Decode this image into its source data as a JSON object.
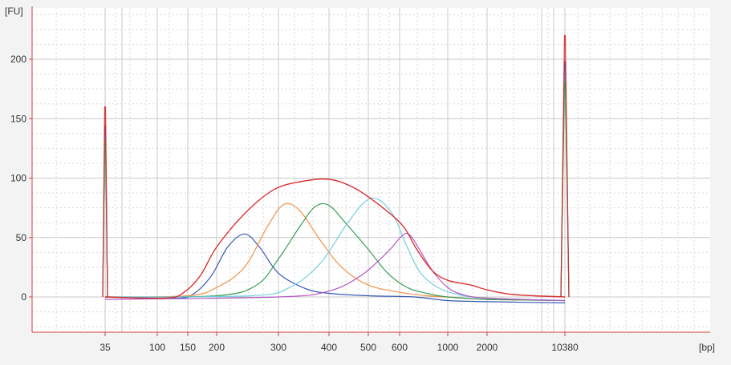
{
  "chart_data": {
    "type": "line",
    "title": "",
    "ylabel": "[FU]",
    "xlabel": "[bp]",
    "x_scale": "log",
    "ylim": [
      -30,
      240
    ],
    "y_ticks": [
      0,
      50,
      100,
      150,
      200
    ],
    "x_ticks": [
      35,
      100,
      150,
      200,
      300,
      400,
      500,
      600,
      1000,
      2000,
      10380
    ],
    "grid": true,
    "legend": "none",
    "colors": {
      "axis": "#d04040",
      "grid_major": "#c8c8c8",
      "grid_minor": "#d8d8d8",
      "background": "#ffffff"
    },
    "markers": [
      {
        "bp": 35,
        "height": 160
      },
      {
        "bp": 10380,
        "height": 220
      }
    ],
    "series": [
      {
        "color": "#2b4fb0",
        "values": [
          [
            35,
            0
          ],
          [
            130,
            -1
          ],
          [
            160,
            3
          ],
          [
            190,
            18
          ],
          [
            215,
            42
          ],
          [
            240,
            53
          ],
          [
            265,
            42
          ],
          [
            300,
            20
          ],
          [
            350,
            7
          ],
          [
            400,
            3
          ],
          [
            500,
            1
          ],
          [
            700,
            0
          ],
          [
            1000,
            -3
          ],
          [
            2000,
            -4
          ],
          [
            10380,
            -5
          ]
        ]
      },
      {
        "color": "#f08c40",
        "values": [
          [
            35,
            0
          ],
          [
            150,
            1
          ],
          [
            200,
            8
          ],
          [
            240,
            25
          ],
          [
            280,
            60
          ],
          [
            310,
            78
          ],
          [
            340,
            72
          ],
          [
            380,
            48
          ],
          [
            430,
            25
          ],
          [
            500,
            10
          ],
          [
            600,
            4
          ],
          [
            800,
            1
          ],
          [
            1000,
            0
          ],
          [
            2000,
            -2
          ],
          [
            10380,
            -3
          ]
        ]
      },
      {
        "color": "#2e9a50",
        "values": [
          [
            35,
            0
          ],
          [
            200,
            1
          ],
          [
            260,
            10
          ],
          [
            300,
            32
          ],
          [
            340,
            60
          ],
          [
            370,
            76
          ],
          [
            400,
            77
          ],
          [
            440,
            62
          ],
          [
            500,
            40
          ],
          [
            560,
            20
          ],
          [
            650,
            8
          ],
          [
            800,
            3
          ],
          [
            1000,
            0
          ],
          [
            2000,
            -2
          ],
          [
            10380,
            -3
          ]
        ]
      },
      {
        "color": "#6ccce0",
        "values": [
          [
            35,
            0
          ],
          [
            250,
            1
          ],
          [
            320,
            8
          ],
          [
            380,
            28
          ],
          [
            440,
            60
          ],
          [
            490,
            80
          ],
          [
            530,
            82
          ],
          [
            580,
            68
          ],
          [
            650,
            42
          ],
          [
            750,
            20
          ],
          [
            900,
            8
          ],
          [
            1200,
            2
          ],
          [
            2000,
            -1
          ],
          [
            10380,
            -3
          ]
        ]
      },
      {
        "color": "#b050c0",
        "values": [
          [
            35,
            -2
          ],
          [
            300,
            0
          ],
          [
            400,
            5
          ],
          [
            480,
            18
          ],
          [
            560,
            38
          ],
          [
            620,
            52
          ],
          [
            670,
            52
          ],
          [
            740,
            40
          ],
          [
            850,
            22
          ],
          [
            1000,
            8
          ],
          [
            1300,
            2
          ],
          [
            2000,
            -1
          ],
          [
            10380,
            -3
          ]
        ]
      },
      {
        "color": "#d82828",
        "values": [
          [
            35,
            0
          ],
          [
            110,
            -1
          ],
          [
            140,
            3
          ],
          [
            170,
            18
          ],
          [
            200,
            42
          ],
          [
            240,
            70
          ],
          [
            290,
            90
          ],
          [
            340,
            97
          ],
          [
            400,
            99
          ],
          [
            460,
            92
          ],
          [
            530,
            78
          ],
          [
            620,
            60
          ],
          [
            720,
            40
          ],
          [
            850,
            22
          ],
          [
            1000,
            14
          ],
          [
            1500,
            10
          ],
          [
            2000,
            6
          ],
          [
            3500,
            2
          ],
          [
            10380,
            0
          ]
        ]
      }
    ]
  }
}
